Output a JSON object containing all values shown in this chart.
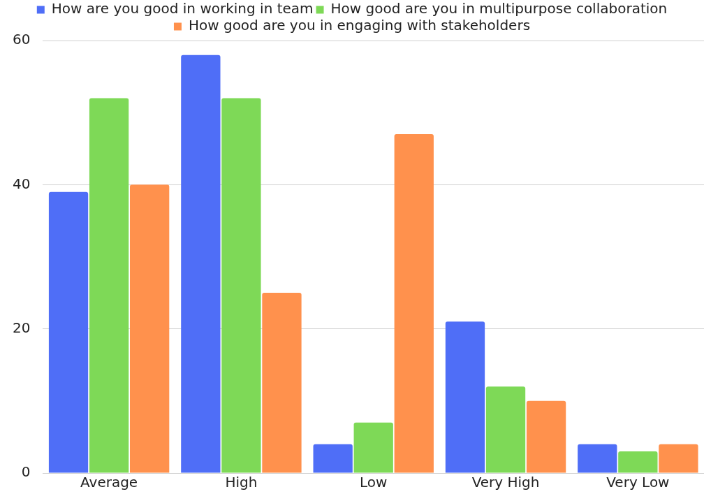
{
  "chart_data": {
    "type": "bar",
    "categories": [
      "Average",
      "High",
      "Low",
      "Very High",
      "Very Low"
    ],
    "series": [
      {
        "name": "How are you good in working in team",
        "color": "#4f6ef7",
        "values": [
          39,
          58,
          4,
          21,
          4
        ]
      },
      {
        "name": "How good are you in multipurpose collaboration",
        "color": "#7ed957",
        "values": [
          52,
          52,
          7,
          12,
          3
        ]
      },
      {
        "name": "How good are you in engaging with stakeholders",
        "color": "#ff914d",
        "values": [
          40,
          25,
          47,
          10,
          4
        ]
      }
    ],
    "ylim": [
      0,
      60
    ],
    "yticks": [
      0,
      20,
      40,
      60
    ],
    "grid": "y",
    "legend": "top"
  }
}
